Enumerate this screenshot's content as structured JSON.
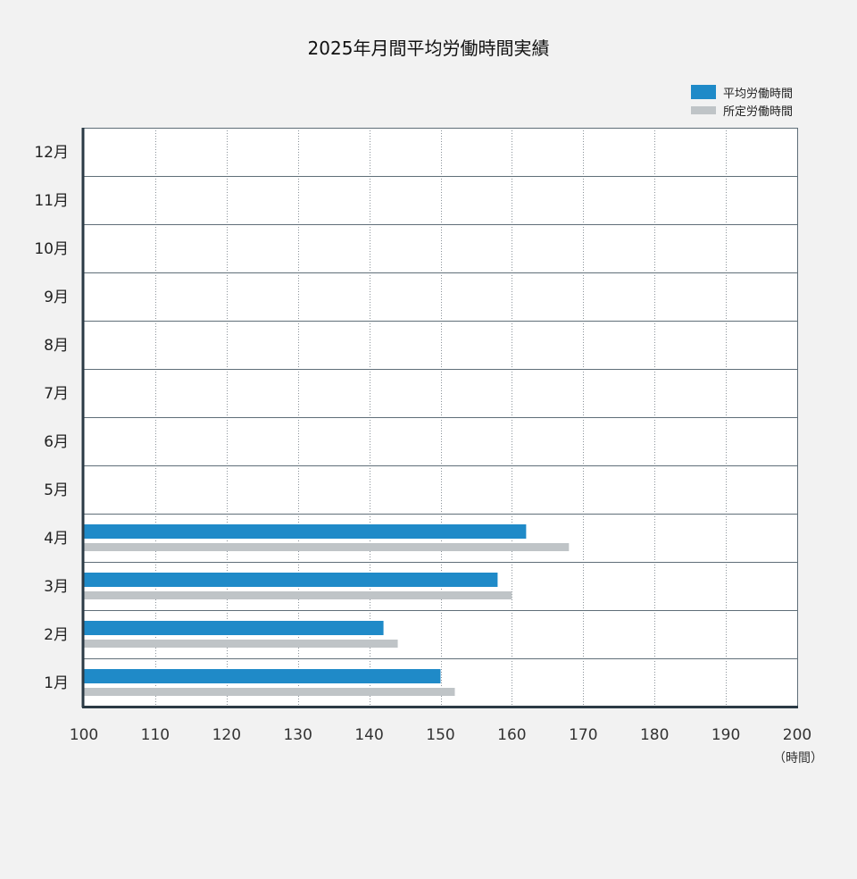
{
  "chart_data": {
    "type": "bar",
    "orientation": "horizontal",
    "title": "2025年月間平均労働時間実績",
    "categories": [
      "1月",
      "2月",
      "3月",
      "4月",
      "5月",
      "6月",
      "7月",
      "8月",
      "9月",
      "10月",
      "11月",
      "12月"
    ],
    "series": [
      {
        "name": "平均労働時間",
        "color": "#1f8ac8",
        "values": [
          150,
          142,
          158,
          162,
          null,
          null,
          null,
          null,
          null,
          null,
          null,
          null
        ]
      },
      {
        "name": "所定労働時間",
        "color": "#bfc4c7",
        "values": [
          152,
          144,
          160,
          168,
          null,
          null,
          null,
          null,
          null,
          null,
          null,
          null
        ]
      }
    ],
    "xlim": [
      100,
      200
    ],
    "xticks": [
      100,
      110,
      120,
      130,
      140,
      150,
      160,
      170,
      180,
      190,
      200
    ],
    "xunit": "（時間）",
    "grid": true,
    "legend_position": "top-right"
  }
}
